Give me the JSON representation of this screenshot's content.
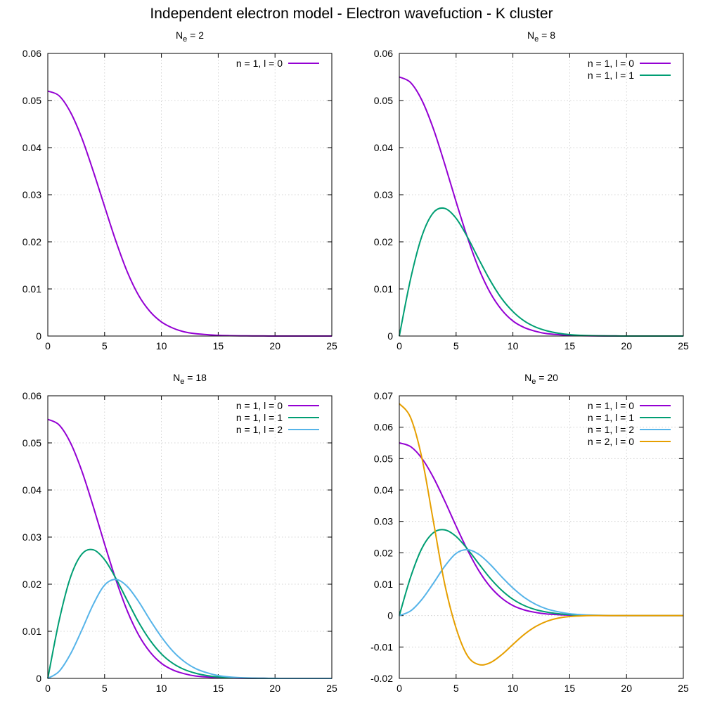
{
  "figure_title": "Independent electron model - Electron wavefuction - K cluster",
  "colors": {
    "n1_l0": "#9400d3",
    "n1_l1": "#009e73",
    "n1_l2": "#56b4e9",
    "n2_l0": "#e69f00"
  },
  "chart_data": [
    {
      "type": "line",
      "title_main": "N",
      "title_sub": "e",
      "title_rest": " = 2",
      "xlim": [
        0,
        25
      ],
      "ylim": [
        0,
        0.06
      ],
      "xticks": [
        0,
        5,
        10,
        15,
        20,
        25
      ],
      "yticks": [
        0,
        0.01,
        0.02,
        0.03,
        0.04,
        0.05,
        0.06
      ],
      "ytick_labels": [
        "0",
        "0.01",
        "0.02",
        "0.03",
        "0.04",
        "0.05",
        "0.06"
      ],
      "grid": true,
      "legend": "top-right",
      "series": [
        {
          "name": "n = 1, l = 0",
          "color_key": "n1_l0",
          "x": [
            0,
            1,
            2,
            3,
            4,
            5,
            6,
            7,
            8,
            9,
            10,
            11,
            12,
            13,
            14,
            15,
            16,
            17,
            18,
            19,
            20,
            21,
            22,
            23,
            24,
            25
          ],
          "y": [
            0.052,
            0.051,
            0.0475,
            0.042,
            0.035,
            0.0275,
            0.0201,
            0.0136,
            0.0086,
            0.0052,
            0.003,
            0.0017,
            0.0009,
            0.0005,
            0.0003,
            0.00015,
            8e-05,
            4e-05,
            2e-05,
            1e-05,
            0,
            0,
            0,
            0,
            0,
            0
          ]
        }
      ]
    },
    {
      "type": "line",
      "title_main": "N",
      "title_sub": "e",
      "title_rest": " = 8",
      "xlim": [
        0,
        25
      ],
      "ylim": [
        0,
        0.06
      ],
      "xticks": [
        0,
        5,
        10,
        15,
        20,
        25
      ],
      "yticks": [
        0,
        0.01,
        0.02,
        0.03,
        0.04,
        0.05,
        0.06
      ],
      "ytick_labels": [
        "0",
        "0.01",
        "0.02",
        "0.03",
        "0.04",
        "0.05",
        "0.06"
      ],
      "grid": true,
      "legend": "top-right",
      "series": [
        {
          "name": "n = 1, l = 0",
          "color_key": "n1_l0",
          "x": [
            0,
            1,
            2,
            3,
            4,
            5,
            6,
            7,
            8,
            9,
            10,
            11,
            12,
            13,
            14,
            15,
            16,
            17,
            18,
            19,
            20,
            21,
            22,
            23,
            24,
            25
          ],
          "y": [
            0.055,
            0.0538,
            0.05,
            0.044,
            0.0365,
            0.0285,
            0.0209,
            0.0143,
            0.0092,
            0.0056,
            0.0032,
            0.0018,
            0.001,
            0.0005,
            0.0003,
            0.00015,
            8e-05,
            4e-05,
            2e-05,
            1e-05,
            0,
            0,
            0,
            0,
            0,
            0
          ]
        },
        {
          "name": "n = 1, l = 1",
          "color_key": "n1_l1",
          "x": [
            0,
            1,
            2,
            3,
            4,
            5,
            6,
            7,
            8,
            9,
            10,
            11,
            12,
            13,
            14,
            15,
            16,
            17,
            18,
            19,
            20,
            21,
            22,
            23,
            24,
            25
          ],
          "y": [
            0,
            0.0122,
            0.0213,
            0.0262,
            0.0271,
            0.025,
            0.021,
            0.0163,
            0.0118,
            0.008,
            0.0052,
            0.0032,
            0.0019,
            0.0011,
            0.0006,
            0.0003,
            0.00015,
            7e-05,
            3e-05,
            1e-05,
            0,
            0,
            0,
            0,
            0,
            0
          ]
        }
      ]
    },
    {
      "type": "line",
      "title_main": "N",
      "title_sub": "e",
      "title_rest": " = 18",
      "xlim": [
        0,
        25
      ],
      "ylim": [
        0,
        0.06
      ],
      "xticks": [
        0,
        5,
        10,
        15,
        20,
        25
      ],
      "yticks": [
        0,
        0.01,
        0.02,
        0.03,
        0.04,
        0.05,
        0.06
      ],
      "ytick_labels": [
        "0",
        "0.01",
        "0.02",
        "0.03",
        "0.04",
        "0.05",
        "0.06"
      ],
      "grid": true,
      "legend": "top-right",
      "series": [
        {
          "name": "n = 1, l = 0",
          "color_key": "n1_l0",
          "x": [
            0,
            1,
            2,
            3,
            4,
            5,
            6,
            7,
            8,
            9,
            10,
            11,
            12,
            13,
            14,
            15,
            16,
            17,
            18,
            19,
            20,
            21,
            22,
            23,
            24,
            25
          ],
          "y": [
            0.055,
            0.0538,
            0.05,
            0.044,
            0.0365,
            0.0285,
            0.0209,
            0.0143,
            0.0092,
            0.0056,
            0.0032,
            0.0018,
            0.001,
            0.0005,
            0.0003,
            0.00015,
            8e-05,
            4e-05,
            2e-05,
            1e-05,
            0,
            0,
            0,
            0,
            0,
            0
          ]
        },
        {
          "name": "n = 1, l = 1",
          "color_key": "n1_l1",
          "x": [
            0,
            1,
            2,
            3,
            4,
            5,
            6,
            7,
            8,
            9,
            10,
            11,
            12,
            13,
            14,
            15,
            16,
            17,
            18,
            19,
            20,
            21,
            22,
            23,
            24,
            25
          ],
          "y": [
            0,
            0.0123,
            0.0215,
            0.0264,
            0.0273,
            0.0252,
            0.0212,
            0.0165,
            0.0119,
            0.0081,
            0.0052,
            0.0032,
            0.0019,
            0.0011,
            0.0006,
            0.0003,
            0.00015,
            7e-05,
            3e-05,
            1e-05,
            0,
            0,
            0,
            0,
            0,
            0
          ]
        },
        {
          "name": "n = 1, l = 2",
          "color_key": "n1_l2",
          "x": [
            0,
            1,
            2,
            3,
            4,
            5,
            6,
            7,
            8,
            9,
            10,
            11,
            12,
            13,
            14,
            15,
            16,
            17,
            18,
            19,
            20,
            21,
            22,
            23,
            24,
            25
          ],
          "y": [
            0,
            0.0015,
            0.0052,
            0.0103,
            0.0157,
            0.0198,
            0.021,
            0.0195,
            0.0163,
            0.0124,
            0.0088,
            0.0058,
            0.0036,
            0.0021,
            0.0012,
            0.0006,
            0.0003,
            0.00015,
            7e-05,
            3e-05,
            1e-05,
            0,
            0,
            0,
            0,
            0
          ]
        }
      ]
    },
    {
      "type": "line",
      "title_main": "N",
      "title_sub": "e",
      "title_rest": " = 20",
      "xlim": [
        0,
        25
      ],
      "ylim": [
        -0.02,
        0.07
      ],
      "xticks": [
        0,
        5,
        10,
        15,
        20,
        25
      ],
      "yticks": [
        -0.02,
        -0.01,
        0,
        0.01,
        0.02,
        0.03,
        0.04,
        0.05,
        0.06,
        0.07
      ],
      "ytick_labels": [
        "-0.02",
        "-0.01",
        "0",
        "0.01",
        "0.02",
        "0.03",
        "0.04",
        "0.05",
        "0.06",
        "0.07"
      ],
      "grid": true,
      "legend": "top-right",
      "series": [
        {
          "name": "n = 1, l = 0",
          "color_key": "n1_l0",
          "x": [
            0,
            1,
            2,
            3,
            4,
            5,
            6,
            7,
            8,
            9,
            10,
            11,
            12,
            13,
            14,
            15,
            16,
            17,
            18,
            19,
            20,
            21,
            22,
            23,
            24,
            25
          ],
          "y": [
            0.055,
            0.0538,
            0.05,
            0.044,
            0.0365,
            0.0285,
            0.0209,
            0.0143,
            0.0092,
            0.0056,
            0.0032,
            0.0018,
            0.001,
            0.0005,
            0.0003,
            0.00015,
            8e-05,
            4e-05,
            2e-05,
            1e-05,
            0,
            0,
            0,
            0,
            0,
            0
          ]
        },
        {
          "name": "n = 1, l = 1",
          "color_key": "n1_l1",
          "x": [
            0,
            1,
            2,
            3,
            4,
            5,
            6,
            7,
            8,
            9,
            10,
            11,
            12,
            13,
            14,
            15,
            16,
            17,
            18,
            19,
            20,
            21,
            22,
            23,
            24,
            25
          ],
          "y": [
            0,
            0.0123,
            0.0215,
            0.0264,
            0.0273,
            0.0252,
            0.0212,
            0.0165,
            0.0119,
            0.0081,
            0.0052,
            0.0032,
            0.0019,
            0.0011,
            0.0006,
            0.0003,
            0.00015,
            7e-05,
            3e-05,
            1e-05,
            0,
            0,
            0,
            0,
            0,
            0
          ]
        },
        {
          "name": "n = 1, l = 2",
          "color_key": "n1_l2",
          "x": [
            0,
            1,
            2,
            3,
            4,
            5,
            6,
            7,
            8,
            9,
            10,
            11,
            12,
            13,
            14,
            15,
            16,
            17,
            18,
            19,
            20,
            21,
            22,
            23,
            24,
            25
          ],
          "y": [
            0,
            0.0015,
            0.0052,
            0.0103,
            0.0157,
            0.0198,
            0.021,
            0.0195,
            0.0163,
            0.0124,
            0.0088,
            0.0058,
            0.0036,
            0.0021,
            0.0012,
            0.0006,
            0.0003,
            0.00015,
            7e-05,
            3e-05,
            1e-05,
            0,
            0,
            0,
            0,
            0
          ]
        },
        {
          "name": "n = 2, l = 0",
          "color_key": "n2_l0",
          "x": [
            0,
            1,
            2,
            3,
            4,
            5,
            6,
            7,
            8,
            9,
            10,
            11,
            12,
            13,
            14,
            15,
            16,
            17,
            18,
            19,
            20,
            21,
            22,
            23,
            24,
            25
          ],
          "y": [
            0.0675,
            0.063,
            0.05,
            0.03,
            0.01,
            -0.004,
            -0.0128,
            -0.0156,
            -0.015,
            -0.0125,
            -0.0092,
            -0.006,
            -0.0035,
            -0.0018,
            -0.0008,
            -0.0003,
            -0.0001,
            0,
            0,
            0,
            0,
            0,
            0,
            0,
            0,
            0
          ]
        }
      ]
    }
  ]
}
